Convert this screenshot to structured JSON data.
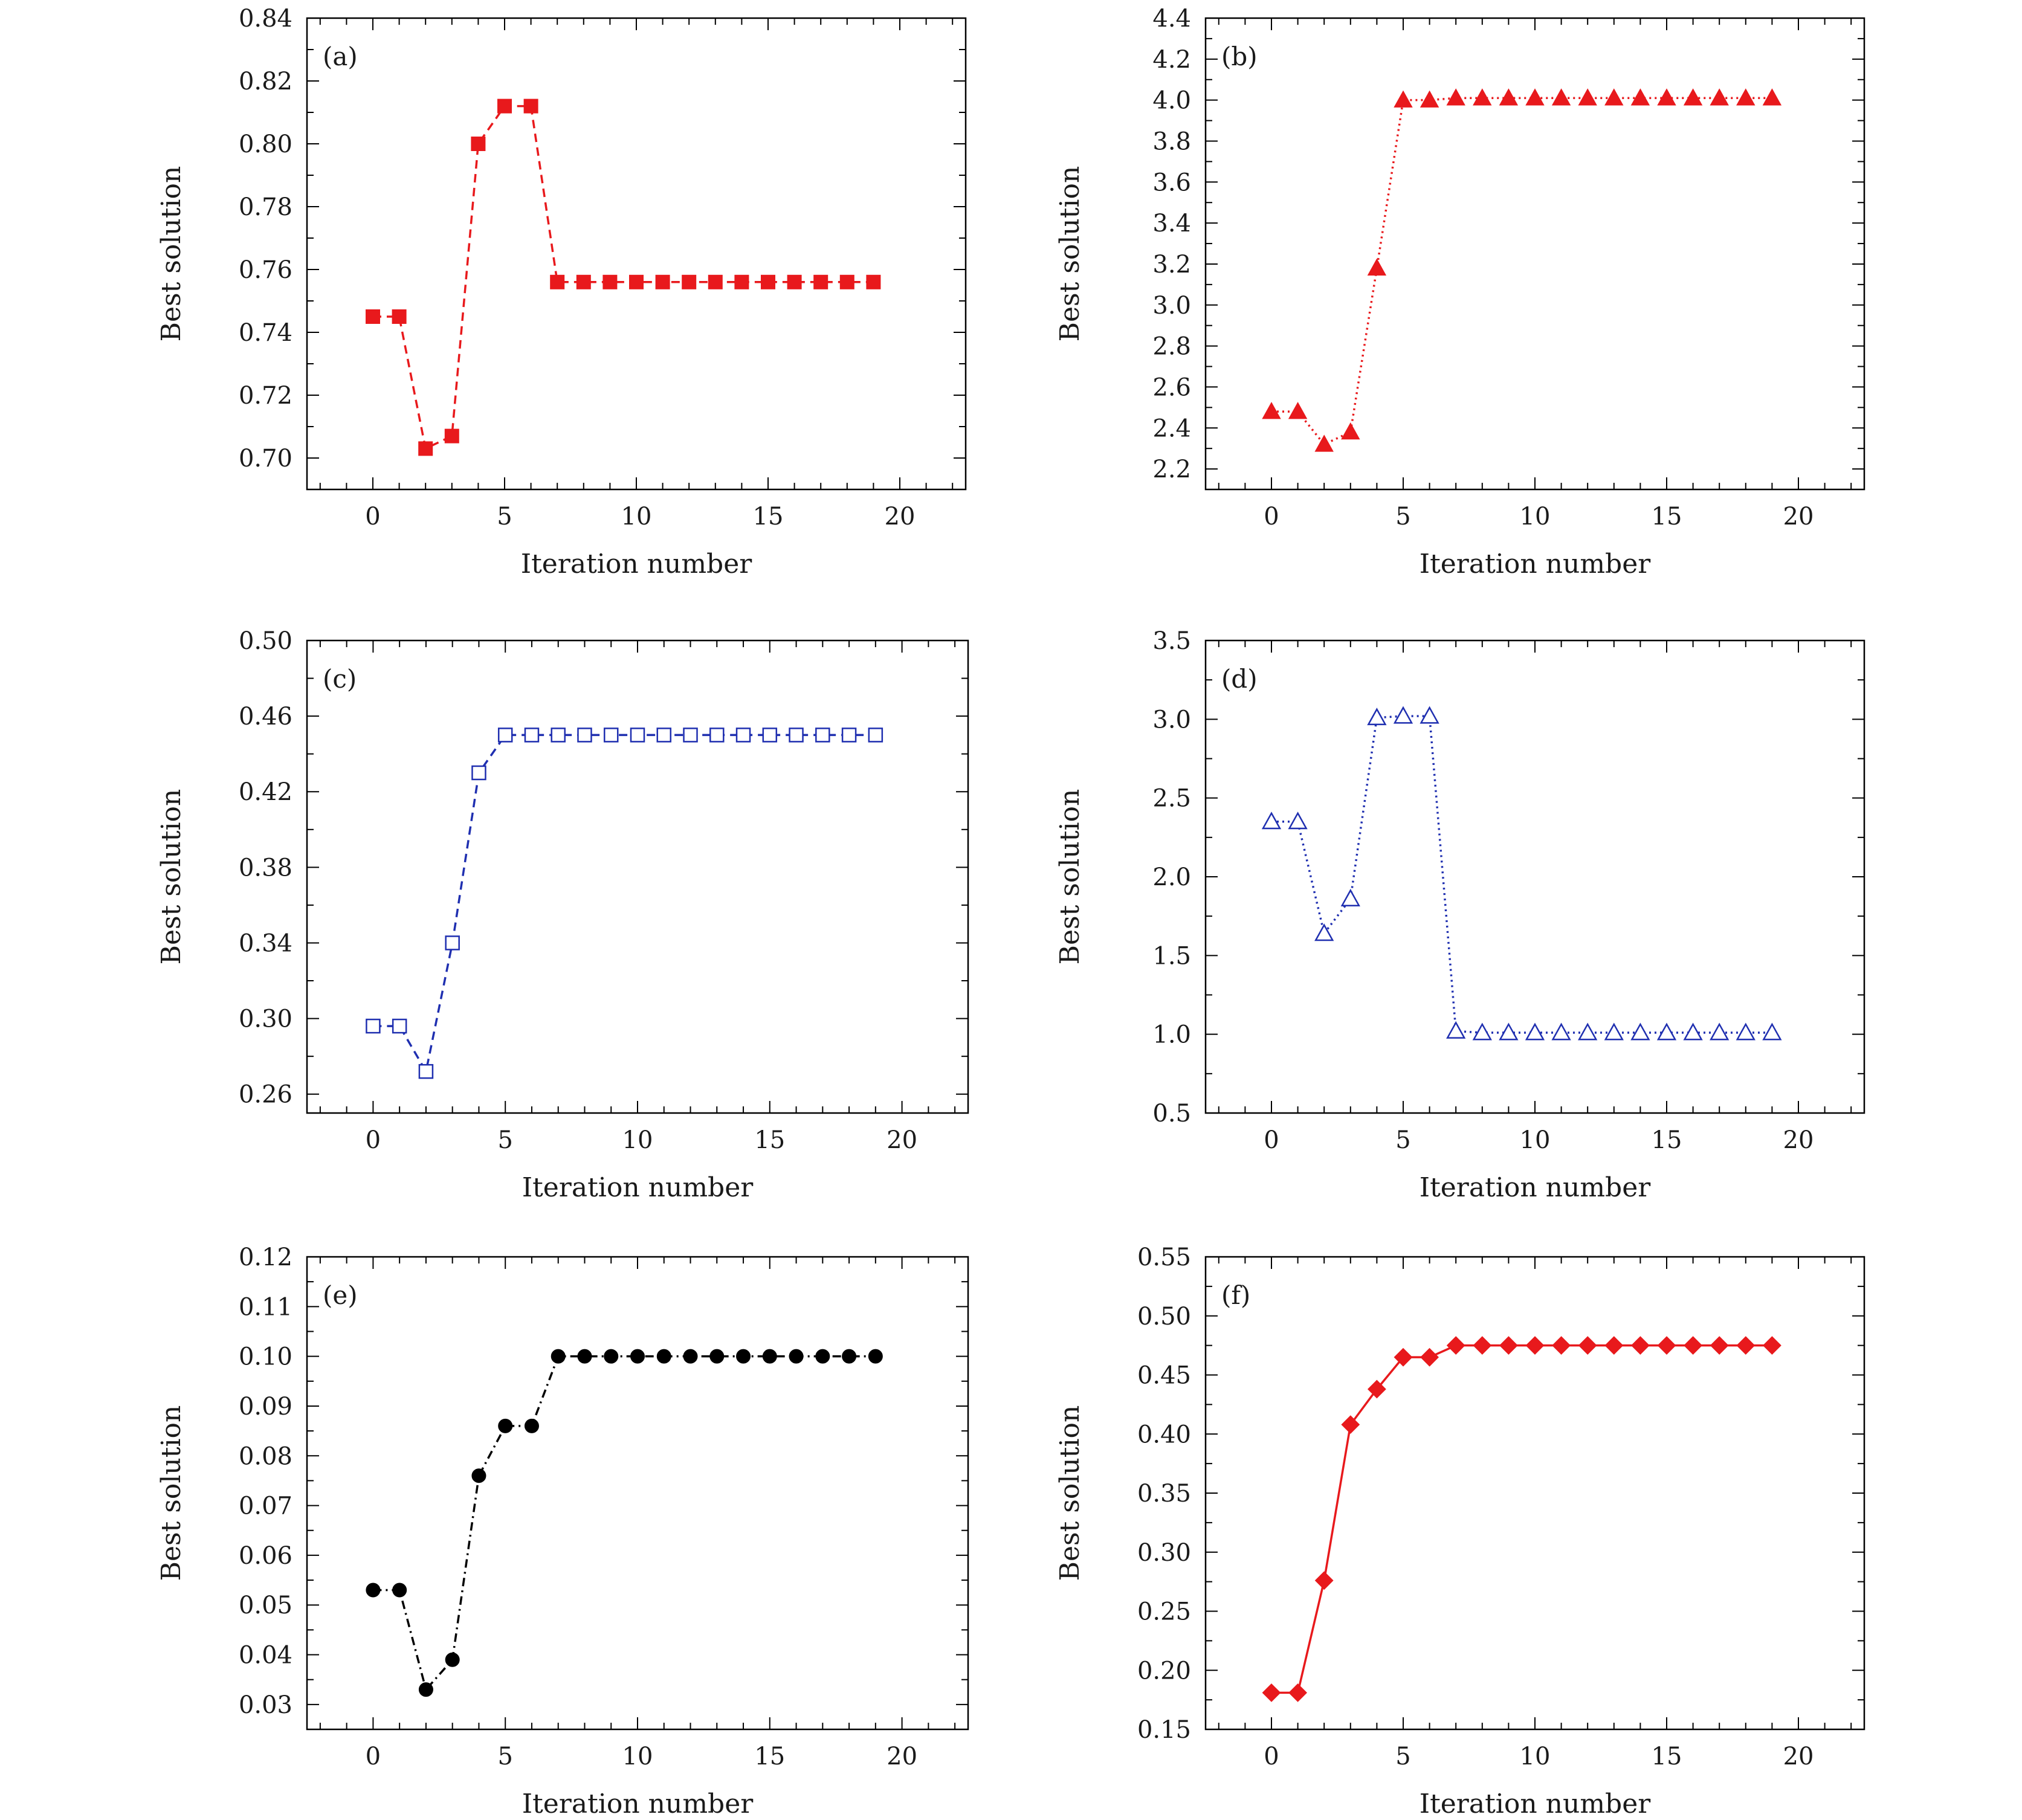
{
  "figure": {
    "background": "#ffffff"
  },
  "chart_data": [
    {
      "type": "line",
      "panel_label": "(a)",
      "xlabel": "Iteration number",
      "ylabel": "Best solution",
      "xlim": [
        -2.5,
        22.5
      ],
      "ylim": [
        0.69,
        0.84
      ],
      "xticks": [
        0,
        5,
        10,
        15,
        20
      ],
      "yticks": [
        0.7,
        0.72,
        0.74,
        0.76,
        0.78,
        0.8,
        0.82,
        0.84
      ],
      "ytick_decimals": 2,
      "grid": false,
      "series": [
        {
          "x": [
            0,
            1,
            2,
            3,
            4,
            5,
            6,
            7,
            8,
            9,
            10,
            11,
            12,
            13,
            14,
            15,
            16,
            17,
            18,
            19
          ],
          "y": [
            0.745,
            0.745,
            0.703,
            0.707,
            0.8,
            0.812,
            0.812,
            0.756,
            0.756,
            0.756,
            0.756,
            0.756,
            0.756,
            0.756,
            0.756,
            0.756,
            0.756,
            0.756,
            0.756,
            0.756
          ],
          "color": "#e8191c",
          "line_style": "dashed",
          "marker": "square",
          "marker_fill": "filled"
        }
      ]
    },
    {
      "type": "line",
      "panel_label": "(b)",
      "xlabel": "Iteration number",
      "ylabel": "Best solution",
      "xlim": [
        -2.5,
        22.5
      ],
      "ylim": [
        2.1,
        4.4
      ],
      "xticks": [
        0,
        5,
        10,
        15,
        20
      ],
      "yticks": [
        2.2,
        2.4,
        2.6,
        2.8,
        3.0,
        3.2,
        3.4,
        3.6,
        3.8,
        4.0,
        4.2,
        4.4
      ],
      "ytick_decimals": 1,
      "grid": false,
      "series": [
        {
          "x": [
            0,
            1,
            2,
            3,
            4,
            5,
            6,
            7,
            8,
            9,
            10,
            11,
            12,
            13,
            14,
            15,
            16,
            17,
            18,
            19
          ],
          "y": [
            2.48,
            2.48,
            2.32,
            2.38,
            3.18,
            4.0,
            4.0,
            4.01,
            4.01,
            4.01,
            4.01,
            4.01,
            4.01,
            4.01,
            4.01,
            4.01,
            4.01,
            4.01,
            4.01,
            4.01
          ],
          "color": "#e8191c",
          "line_style": "dotted",
          "marker": "triangle",
          "marker_fill": "filled"
        }
      ]
    },
    {
      "type": "line",
      "panel_label": "(c)",
      "xlabel": "Iteration number",
      "ylabel": "Best solution",
      "xlim": [
        -2.5,
        22.5
      ],
      "ylim": [
        0.25,
        0.5
      ],
      "xticks": [
        0,
        5,
        10,
        15,
        20
      ],
      "yticks": [
        0.26,
        0.3,
        0.34,
        0.38,
        0.42,
        0.46,
        0.5
      ],
      "ytick_decimals": 2,
      "grid": false,
      "series": [
        {
          "x": [
            0,
            1,
            2,
            3,
            4,
            5,
            6,
            7,
            8,
            9,
            10,
            11,
            12,
            13,
            14,
            15,
            16,
            17,
            18,
            19
          ],
          "y": [
            0.296,
            0.296,
            0.272,
            0.34,
            0.43,
            0.45,
            0.45,
            0.45,
            0.45,
            0.45,
            0.45,
            0.45,
            0.45,
            0.45,
            0.45,
            0.45,
            0.45,
            0.45,
            0.45,
            0.45
          ],
          "color": "#1f2fb0",
          "line_style": "dashed",
          "marker": "square",
          "marker_fill": "open"
        }
      ]
    },
    {
      "type": "line",
      "panel_label": "(d)",
      "xlabel": "Iteration number",
      "ylabel": "Best solution",
      "xlim": [
        -2.5,
        22.5
      ],
      "ylim": [
        0.5,
        3.5
      ],
      "xticks": [
        0,
        5,
        10,
        15,
        20
      ],
      "yticks": [
        0.5,
        1.0,
        1.5,
        2.0,
        2.5,
        3.0,
        3.5
      ],
      "ytick_decimals": 1,
      "grid": false,
      "series": [
        {
          "x": [
            0,
            1,
            2,
            3,
            4,
            5,
            6,
            7,
            8,
            9,
            10,
            11,
            12,
            13,
            14,
            15,
            16,
            17,
            18,
            19
          ],
          "y": [
            2.35,
            2.35,
            1.64,
            1.86,
            3.01,
            3.02,
            3.02,
            1.02,
            1.01,
            1.01,
            1.01,
            1.01,
            1.01,
            1.01,
            1.01,
            1.01,
            1.01,
            1.01,
            1.01,
            1.01
          ],
          "color": "#1f2fb0",
          "line_style": "dotted",
          "marker": "triangle",
          "marker_fill": "open"
        }
      ]
    },
    {
      "type": "line",
      "panel_label": "(e)",
      "xlabel": "Iteration number",
      "ylabel": "Best solution",
      "xlim": [
        -2.5,
        22.5
      ],
      "ylim": [
        0.025,
        0.12
      ],
      "xticks": [
        0,
        5,
        10,
        15,
        20
      ],
      "yticks": [
        0.03,
        0.04,
        0.05,
        0.06,
        0.07,
        0.08,
        0.09,
        0.1,
        0.11,
        0.12
      ],
      "ytick_decimals": 2,
      "grid": false,
      "series": [
        {
          "x": [
            0,
            1,
            2,
            3,
            4,
            5,
            6,
            7,
            8,
            9,
            10,
            11,
            12,
            13,
            14,
            15,
            16,
            17,
            18,
            19
          ],
          "y": [
            0.053,
            0.053,
            0.033,
            0.039,
            0.076,
            0.086,
            0.086,
            0.1,
            0.1,
            0.1,
            0.1,
            0.1,
            0.1,
            0.1,
            0.1,
            0.1,
            0.1,
            0.1,
            0.1,
            0.1
          ],
          "color": "#000000",
          "line_style": "dashdot",
          "marker": "circle",
          "marker_fill": "filled"
        }
      ]
    },
    {
      "type": "line",
      "panel_label": "(f)",
      "xlabel": "Iteration number",
      "ylabel": "Best solution",
      "xlim": [
        -2.5,
        22.5
      ],
      "ylim": [
        0.15,
        0.55
      ],
      "xticks": [
        0,
        5,
        10,
        15,
        20
      ],
      "yticks": [
        0.15,
        0.2,
        0.25,
        0.3,
        0.35,
        0.4,
        0.45,
        0.5,
        0.55
      ],
      "ytick_decimals": 2,
      "grid": false,
      "series": [
        {
          "x": [
            0,
            1,
            2,
            3,
            4,
            5,
            6,
            7,
            8,
            9,
            10,
            11,
            12,
            13,
            14,
            15,
            16,
            17,
            18,
            19
          ],
          "y": [
            0.181,
            0.181,
            0.276,
            0.408,
            0.438,
            0.465,
            0.465,
            0.475,
            0.475,
            0.475,
            0.475,
            0.475,
            0.475,
            0.475,
            0.475,
            0.475,
            0.475,
            0.475,
            0.475,
            0.475
          ],
          "color": "#e8191c",
          "line_style": "solid",
          "marker": "diamond",
          "marker_fill": "filled"
        }
      ]
    }
  ]
}
